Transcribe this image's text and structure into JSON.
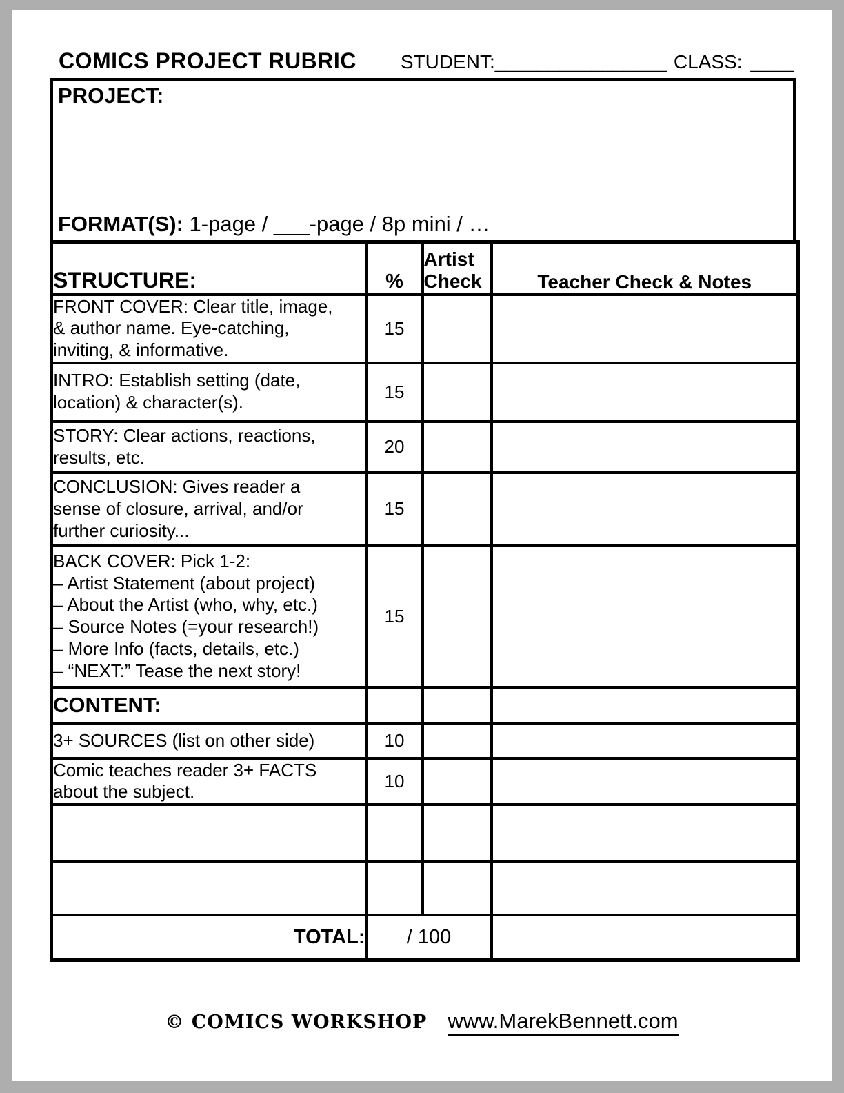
{
  "header": {
    "title": "COMICS PROJECT RUBRIC",
    "student_label": "STUDENT:",
    "student_blank": "________________",
    "class_label": "CLASS:",
    "class_blank": "____"
  },
  "project_box": {
    "label": "PROJECT:",
    "format_label": "FORMAT(S):",
    "format_value": " 1-page / ___-page / 8p mini / …"
  },
  "rubric_table": {
    "columns": {
      "structure": "STRUCTURE:",
      "percent": "%",
      "artist_check": "Artist\nCheck",
      "teacher": "Teacher Check & Notes"
    },
    "rows": [
      {
        "label": "FRONT COVER: Clear title, image,\n& author name. Eye-catching,\ninviting, & informative.",
        "percent": "15"
      },
      {
        "label": "INTRO: Establish setting (date,\nlocation) & character(s).",
        "percent": "15"
      },
      {
        "label": "STORY: Clear actions, reactions,\nresults, etc.",
        "percent": "20"
      },
      {
        "label": "CONCLUSION: Gives reader a\nsense of closure, arrival, and/or\nfurther curiosity...",
        "percent": "15"
      },
      {
        "label": "BACK COVER: Pick 1-2:\n– Artist Statement (about project)\n– About the Artist (who, why, etc.)\n– Source Notes (=your research!)\n– More Info (facts, details, etc.)\n– “NEXT:” Tease the next story!",
        "percent": "15"
      },
      {
        "label": "CONTENT:",
        "percent": ""
      },
      {
        "label": "3+ SOURCES (list on other side)",
        "percent": "10"
      },
      {
        "label": "Comic teaches reader 3+ FACTS\nabout the subject.",
        "percent": "10"
      },
      {
        "label": "",
        "percent": ""
      },
      {
        "label": "",
        "percent": ""
      }
    ],
    "total_row": {
      "label": "TOTAL:",
      "score": "/ 100"
    }
  },
  "footer": {
    "copyright": "© COMICS WORKSHOP",
    "website": "www.MarekBennett.com"
  }
}
